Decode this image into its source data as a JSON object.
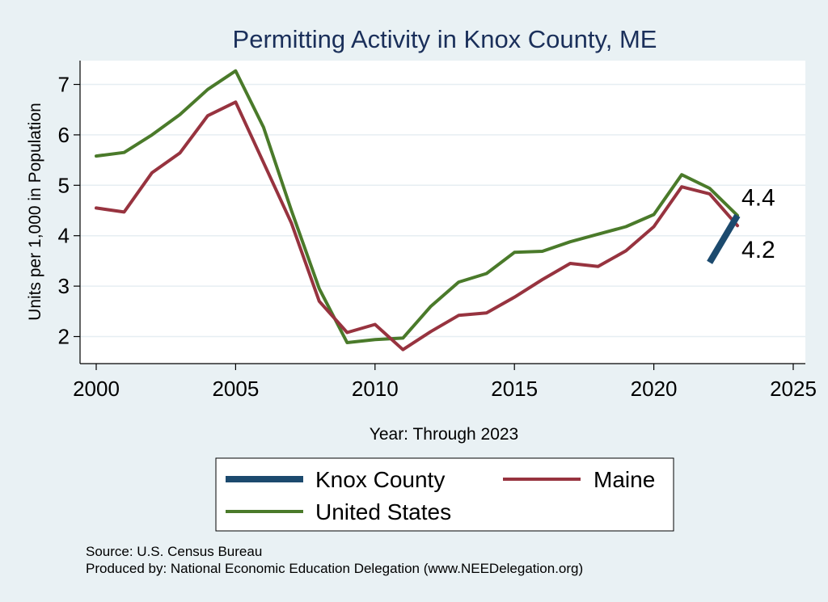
{
  "chart_data": {
    "type": "line",
    "title": "Permitting Activity in Knox County, ME",
    "xlabel": "Year: Through 2023",
    "ylabel": "Units per 1,000 in Population",
    "xlim": [
      2000,
      2025
    ],
    "ylim": [
      1.5,
      7.5
    ],
    "x_ticks": [
      2000,
      2005,
      2010,
      2015,
      2020,
      2025
    ],
    "y_ticks": [
      2,
      3,
      4,
      5,
      6,
      7
    ],
    "grid": true,
    "legend_position": "bottom",
    "series": [
      {
        "name": "United States",
        "color": "#4a7a2a",
        "x": [
          2000,
          2001,
          2002,
          2003,
          2004,
          2005,
          2006,
          2007,
          2008,
          2009,
          2010,
          2011,
          2012,
          2013,
          2014,
          2015,
          2016,
          2017,
          2018,
          2019,
          2020,
          2021,
          2022,
          2023
        ],
        "y": [
          5.58,
          5.65,
          6.0,
          6.4,
          6.9,
          7.27,
          6.15,
          4.5,
          2.95,
          1.88,
          1.94,
          1.97,
          2.6,
          3.08,
          3.25,
          3.67,
          3.69,
          3.88,
          4.03,
          4.18,
          4.42,
          5.21,
          4.94,
          4.4
        ]
      },
      {
        "name": "Maine",
        "color": "#97333f",
        "x": [
          2000,
          2001,
          2002,
          2003,
          2004,
          2005,
          2006,
          2007,
          2008,
          2009,
          2010,
          2011,
          2012,
          2013,
          2014,
          2015,
          2016,
          2017,
          2018,
          2019,
          2020,
          2021,
          2022,
          2023
        ],
        "y": [
          4.55,
          4.47,
          5.25,
          5.64,
          6.38,
          6.65,
          5.45,
          4.25,
          2.7,
          2.08,
          2.24,
          1.74,
          2.1,
          2.42,
          2.47,
          2.78,
          3.13,
          3.45,
          3.39,
          3.7,
          4.18,
          4.97,
          4.83,
          4.2
        ]
      },
      {
        "name": "Knox County",
        "color": "#1c4a6e",
        "x": [
          2022,
          2023
        ],
        "y": [
          3.47,
          4.4
        ]
      }
    ],
    "end_labels": [
      {
        "text": "4.4",
        "value": 4.4
      },
      {
        "text": "4.2",
        "value": 4.2
      }
    ],
    "legend": [
      {
        "name": "Knox County",
        "color": "#1c4a6e"
      },
      {
        "name": "Maine",
        "color": "#97333f"
      },
      {
        "name": "United States",
        "color": "#4a7a2a"
      }
    ]
  },
  "footer": {
    "source": "Source: U.S. Census Bureau",
    "produced_by": "Produced by: National Economic Education Delegation (www.NEEDelegation.org)"
  }
}
